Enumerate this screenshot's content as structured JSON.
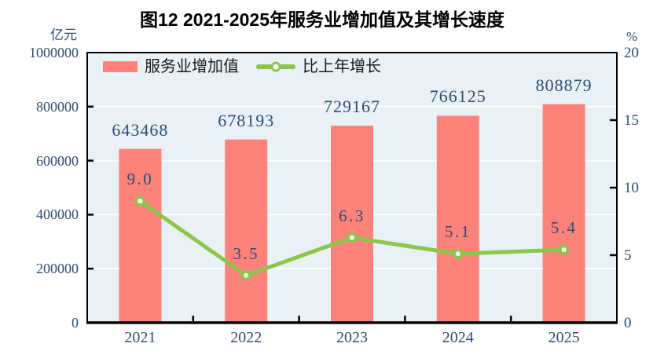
{
  "chart_data": {
    "type": "combo-bar-line",
    "title": "图12  2021-2025年服务业增加值及其增长速度",
    "categories": [
      "2021",
      "2022",
      "2023",
      "2024",
      "2025"
    ],
    "series": [
      {
        "name": "服务业增加值",
        "type": "bar",
        "axis": "left",
        "values": [
          643468,
          678193,
          729167,
          766125,
          808879
        ],
        "labels": [
          "643468",
          "678193",
          "729167",
          "766125",
          "808879"
        ],
        "color": "#fc827a"
      },
      {
        "name": "比上年增长",
        "type": "line",
        "axis": "right",
        "values": [
          9.0,
          3.5,
          6.3,
          5.1,
          5.4
        ],
        "labels": [
          "9.0",
          "3.5",
          "6.3",
          "5.1",
          "5.4"
        ],
        "color": "#8dc649",
        "marker": "circle-white-fill"
      }
    ],
    "left_axis": {
      "unit": "亿元",
      "min": 0,
      "max": 1000000,
      "step": 200000,
      "ticks": [
        "1000000",
        "800000",
        "600000",
        "400000",
        "200000",
        "0"
      ]
    },
    "right_axis": {
      "unit": "%",
      "min": 0,
      "max": 20,
      "step": 5,
      "ticks": [
        "20",
        "15",
        "10",
        "5",
        "0"
      ]
    },
    "legend_position": "top-left-inside-plot",
    "grid": "horizontal",
    "colors": {
      "plot_background": "#e9f1f6",
      "gridline": "#ffffff",
      "axis_border": "#000000",
      "tick_text": "#2d4d71",
      "title_text": "#000000"
    }
  }
}
